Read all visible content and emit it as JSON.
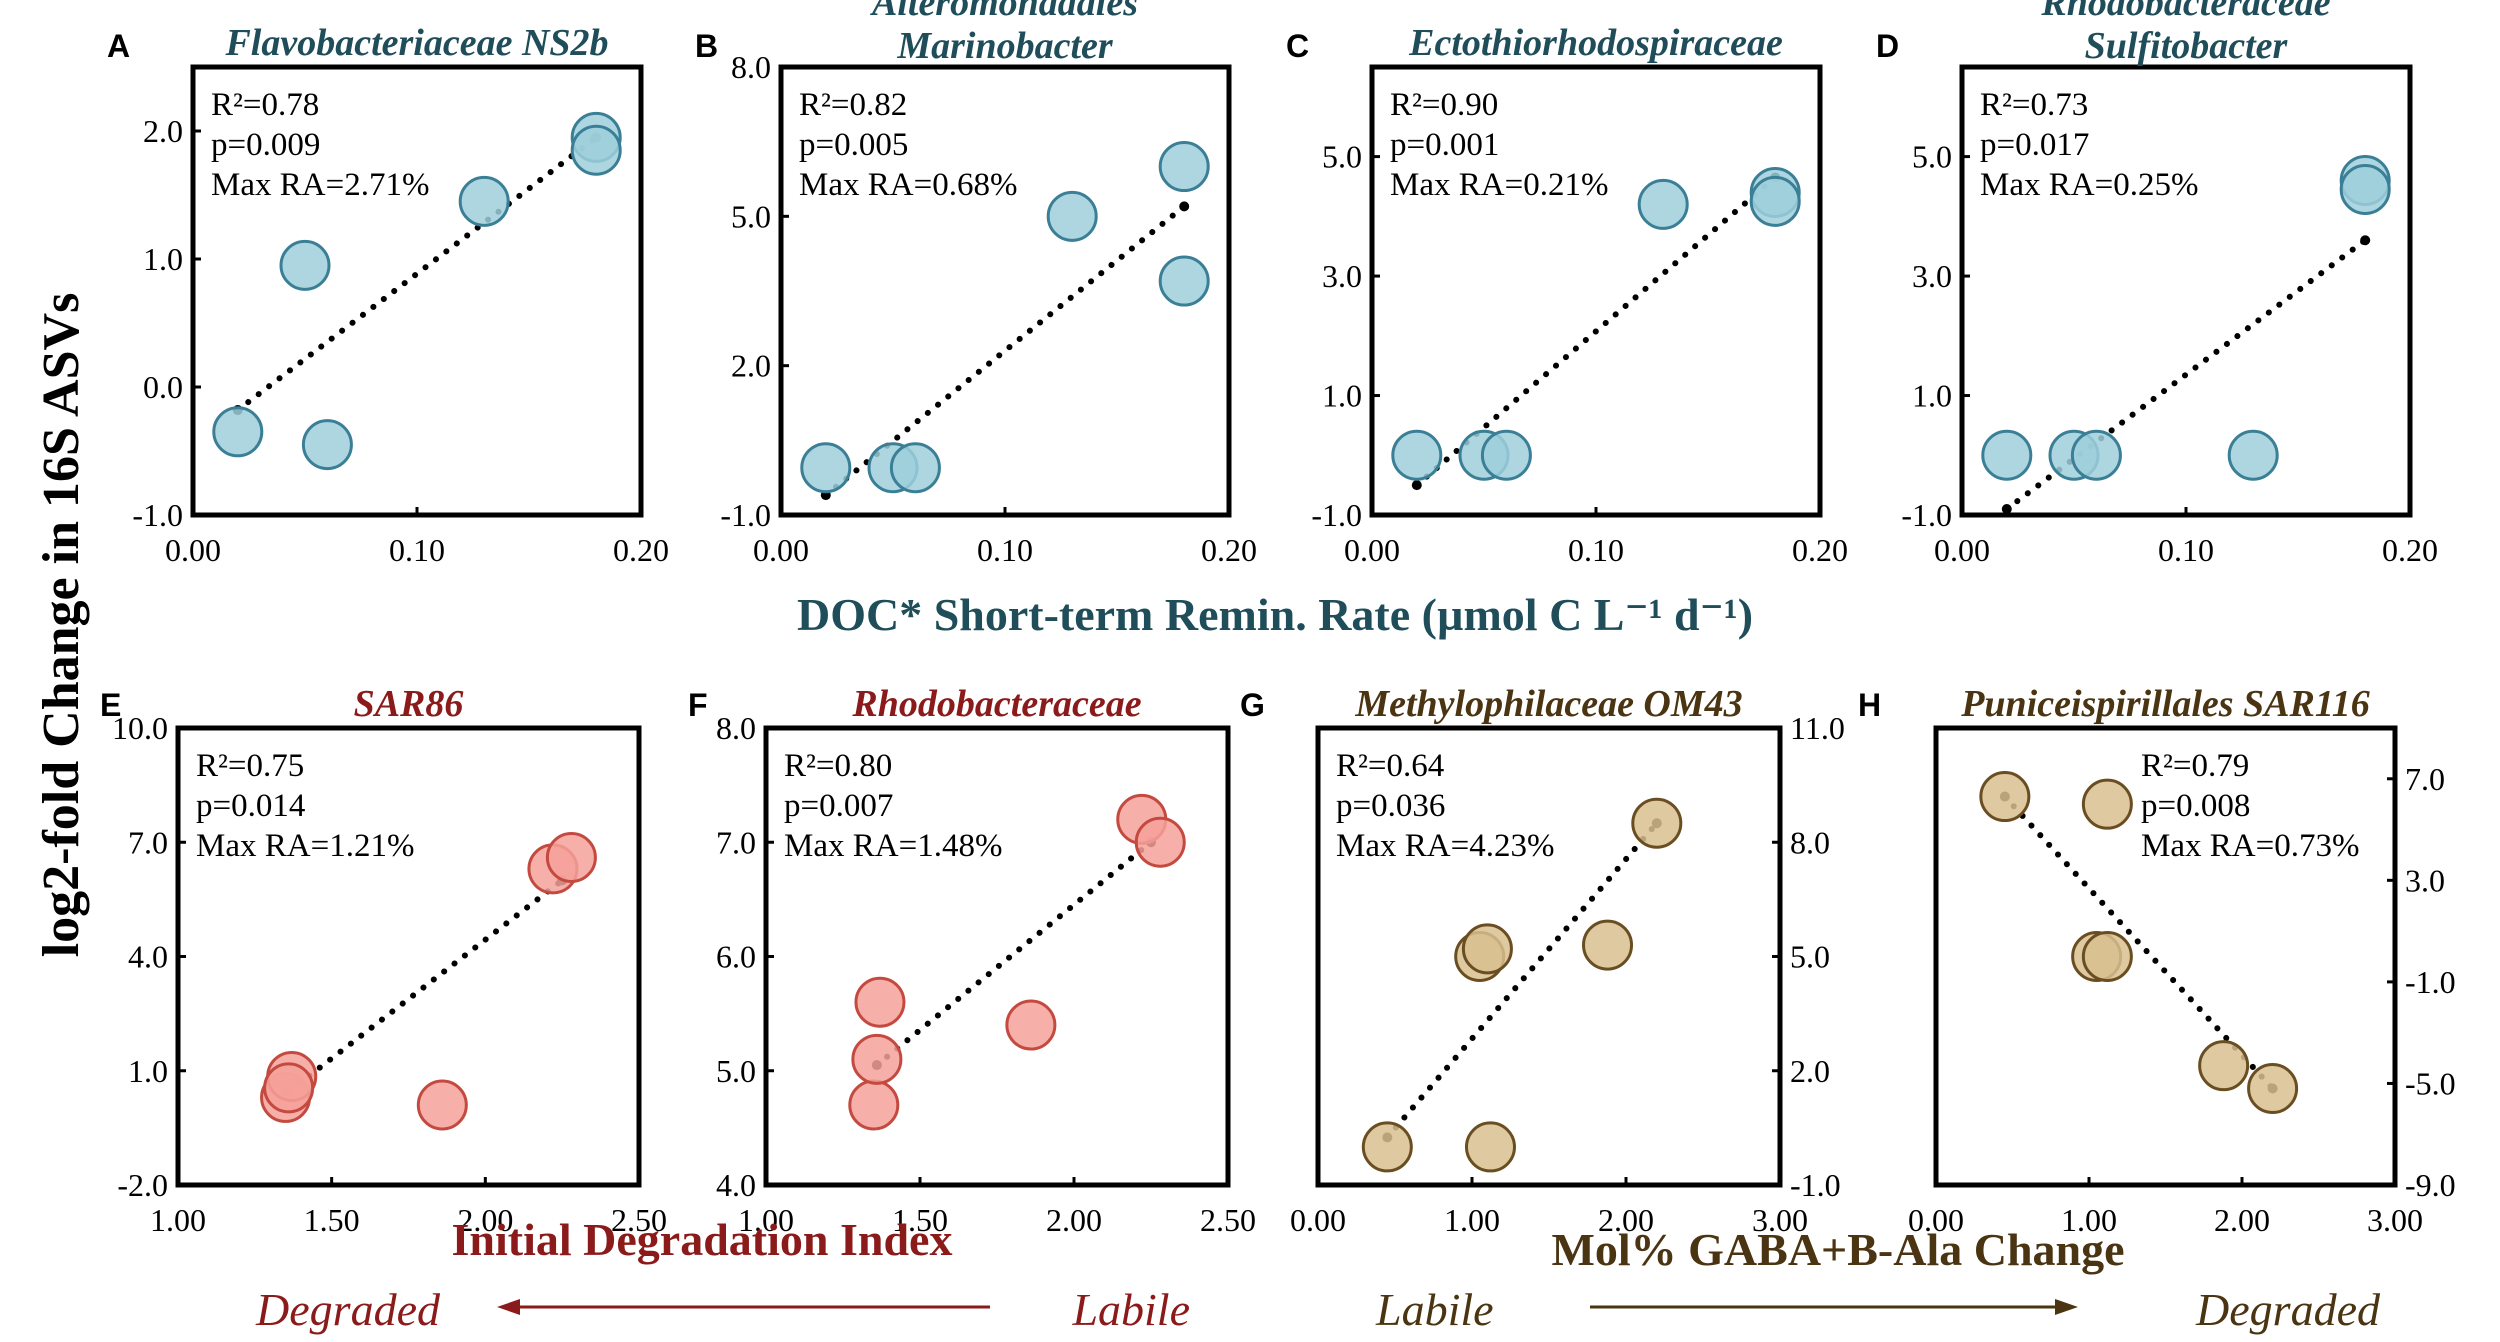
{
  "figure": {
    "ylabel": "log2-fold Change in 16S ASVs",
    "xlabel_top": "DOC* Short-term Remin. Rate (µmol C L⁻¹ d⁻¹)",
    "xlabel_bottom_left": "Initial Degradation Index",
    "xlabel_bottom_right": "Mol% GABA+B-Ala Change",
    "arrow_left": {
      "from": "Labile",
      "to": "Degraded"
    },
    "arrow_right": {
      "from": "Labile",
      "to": "Degraded"
    },
    "colors": {
      "blue_title": "#1f4e5a",
      "blue_fill": "#9fcfdc",
      "blue_stroke": "#3a7f96",
      "red_title": "#8b1a1a",
      "red_fill": "#f4a19a",
      "red_stroke": "#c44a40",
      "brown_title": "#4a3411",
      "brown_fill": "#d8bf8f",
      "brown_stroke": "#6a4e22"
    }
  },
  "chart_data": [
    {
      "panel": "A",
      "type": "scatter",
      "title": [
        "Flavobacteriaceae NS2b"
      ],
      "scheme": "blue",
      "stats": [
        "R²=0.78",
        "p=0.009",
        "Max RA=2.71%"
      ],
      "xlim": [
        0,
        0.2
      ],
      "ylim": [
        -1,
        2.5
      ],
      "xticks": [
        0,
        0.1,
        0.2
      ],
      "xtick_labels": [
        "0.00",
        "0.10",
        "0.20"
      ],
      "yticks": [
        -1,
        0,
        1,
        2
      ],
      "ytick_labels": [
        "-1.0",
        "0.0",
        "1.0",
        "2.0"
      ],
      "yaxis_side": "left",
      "points": [
        [
          0.02,
          -0.35
        ],
        [
          0.05,
          0.95
        ],
        [
          0.06,
          -0.45
        ],
        [
          0.13,
          1.45
        ],
        [
          0.18,
          1.95
        ],
        [
          0.18,
          1.85
        ]
      ],
      "trend": [
        [
          0.02,
          -0.18
        ],
        [
          0.18,
          1.95
        ]
      ]
    },
    {
      "panel": "B",
      "type": "scatter",
      "title": [
        "Alteromonadales",
        "Marinobacter"
      ],
      "scheme": "blue",
      "stats": [
        "R²=0.82",
        "p=0.005",
        "Max RA=0.68%"
      ],
      "xlim": [
        0,
        0.2
      ],
      "ylim": [
        -1,
        8
      ],
      "xticks": [
        0,
        0.1,
        0.2
      ],
      "xtick_labels": [
        "0.00",
        "0.10",
        "0.20"
      ],
      "yticks": [
        -1,
        2,
        5,
        8
      ],
      "ytick_labels": [
        "-1.0",
        "2.0",
        "5.0",
        "8.0"
      ],
      "yaxis_side": "left",
      "points": [
        [
          0.02,
          -0.05
        ],
        [
          0.05,
          -0.05
        ],
        [
          0.06,
          -0.05
        ],
        [
          0.13,
          5.0
        ],
        [
          0.18,
          6.0
        ],
        [
          0.18,
          3.7
        ]
      ],
      "trend": [
        [
          0.02,
          -0.6
        ],
        [
          0.18,
          5.2
        ]
      ]
    },
    {
      "panel": "C",
      "type": "scatter",
      "title": [
        "Ectothiorhodospiraceae"
      ],
      "scheme": "blue",
      "stats": [
        "R²=0.90",
        "p=0.001",
        "Max RA=0.21%"
      ],
      "xlim": [
        0,
        0.2
      ],
      "ylim": [
        -1,
        6.5
      ],
      "xticks": [
        0,
        0.1,
        0.2
      ],
      "xtick_labels": [
        "0.00",
        "0.10",
        "0.20"
      ],
      "yticks": [
        -1,
        1,
        3,
        5
      ],
      "ytick_labels": [
        "-1.0",
        "1.0",
        "3.0",
        "5.0"
      ],
      "yaxis_side": "left",
      "points": [
        [
          0.02,
          0.0
        ],
        [
          0.05,
          0.0
        ],
        [
          0.06,
          0.0
        ],
        [
          0.13,
          4.2
        ],
        [
          0.18,
          4.4
        ],
        [
          0.18,
          4.25
        ]
      ],
      "trend": [
        [
          0.02,
          -0.5
        ],
        [
          0.18,
          4.65
        ]
      ]
    },
    {
      "panel": "D",
      "type": "scatter",
      "title": [
        "Rhodobacteraceae",
        "Sulfitobacter"
      ],
      "scheme": "blue",
      "stats": [
        "R²=0.73",
        "p=0.017",
        "Max RA=0.25%"
      ],
      "xlim": [
        0,
        0.2
      ],
      "ylim": [
        -1,
        6.5
      ],
      "xticks": [
        0,
        0.1,
        0.2
      ],
      "xtick_labels": [
        "0.00",
        "0.10",
        "0.20"
      ],
      "yticks": [
        -1,
        1,
        3,
        5
      ],
      "ytick_labels": [
        "-1.0",
        "1.0",
        "3.0",
        "5.0"
      ],
      "yaxis_side": "left",
      "points": [
        [
          0.02,
          0.0
        ],
        [
          0.05,
          0.0
        ],
        [
          0.06,
          0.0
        ],
        [
          0.13,
          0.0
        ],
        [
          0.18,
          4.6
        ],
        [
          0.18,
          4.45
        ]
      ],
      "trend": [
        [
          0.02,
          -0.9
        ],
        [
          0.18,
          3.6
        ]
      ]
    },
    {
      "panel": "E",
      "type": "scatter",
      "title": [
        "SAR86"
      ],
      "scheme": "red",
      "stats": [
        "R²=0.75",
        "p=0.014",
        "Max RA=1.21%"
      ],
      "xlim": [
        1,
        2.5
      ],
      "ylim": [
        -2,
        10
      ],
      "xticks": [
        1,
        1.5,
        2,
        2.5
      ],
      "xtick_labels": [
        "1.00",
        "1.50",
        "2.00",
        "2.50"
      ],
      "yticks": [
        -2,
        1,
        4,
        7,
        10
      ],
      "ytick_labels": [
        "-2.0",
        "1.0",
        "4.0",
        "7.0",
        "10.0"
      ],
      "yaxis_side": "left",
      "points": [
        [
          1.35,
          0.3
        ],
        [
          1.37,
          0.85
        ],
        [
          1.36,
          0.55
        ],
        [
          1.86,
          0.1
        ],
        [
          2.22,
          6.3
        ],
        [
          2.28,
          6.6
        ]
      ],
      "trend": [
        [
          1.36,
          0.45
        ],
        [
          2.25,
          6.0
        ]
      ]
    },
    {
      "panel": "F",
      "type": "scatter",
      "title": [
        "Rhodobacteraceae"
      ],
      "scheme": "red",
      "stats": [
        "R²=0.80",
        "p=0.007",
        "Max RA=1.48%"
      ],
      "xlim": [
        1,
        2.5
      ],
      "ylim": [
        4,
        8
      ],
      "xticks": [
        1,
        1.5,
        2,
        2.5
      ],
      "xtick_labels": [
        "1.00",
        "1.50",
        "2.00",
        "2.50"
      ],
      "yticks": [
        4,
        5,
        6,
        7,
        8
      ],
      "ytick_labels": [
        "4.0",
        "5.0",
        "6.0",
        "7.0",
        "8.0"
      ],
      "yaxis_side": "left",
      "points": [
        [
          1.35,
          4.7
        ],
        [
          1.36,
          5.1
        ],
        [
          1.37,
          5.6
        ],
        [
          1.86,
          5.4
        ],
        [
          2.22,
          7.2
        ],
        [
          2.28,
          7.0
        ]
      ],
      "trend": [
        [
          1.36,
          5.05
        ],
        [
          2.25,
          7.0
        ]
      ]
    },
    {
      "panel": "G",
      "type": "scatter",
      "title": [
        "Methylophilaceae OM43"
      ],
      "scheme": "brown",
      "stats": [
        "R²=0.64",
        "p=0.036",
        "Max RA=4.23%"
      ],
      "xlim": [
        0,
        3
      ],
      "ylim": [
        -1,
        11
      ],
      "xticks": [
        0,
        1,
        2,
        3
      ],
      "xtick_labels": [
        "0.00",
        "1.00",
        "2.00",
        "3.00"
      ],
      "yticks": [
        -1,
        2,
        5,
        8,
        11
      ],
      "ytick_labels": [
        "-1.0",
        "2.0",
        "5.0",
        "8.0",
        "11.0"
      ],
      "yaxis_side": "right",
      "points": [
        [
          0.45,
          0.0
        ],
        [
          1.05,
          5.0
        ],
        [
          1.1,
          5.2
        ],
        [
          1.12,
          0.0
        ],
        [
          1.88,
          5.3
        ],
        [
          2.2,
          8.5
        ]
      ],
      "trend": [
        [
          0.45,
          0.25
        ],
        [
          2.2,
          8.5
        ]
      ]
    },
    {
      "panel": "H",
      "type": "scatter",
      "title": [
        "Puniceispirillales SAR116"
      ],
      "scheme": "brown",
      "stats": [
        "R²=0.79",
        "p=0.008",
        "Max RA=0.73%"
      ],
      "xlim": [
        0,
        3
      ],
      "ylim": [
        -9,
        9
      ],
      "xticks": [
        0,
        1,
        2,
        3
      ],
      "xtick_labels": [
        "0.00",
        "1.00",
        "2.00",
        "3.00"
      ],
      "yticks": [
        -9,
        -5,
        -1,
        3,
        7
      ],
      "ytick_labels": [
        "-9.0",
        "-5.0",
        "-1.0",
        "3.0",
        "7.0"
      ],
      "yaxis_side": "right",
      "points": [
        [
          0.45,
          6.3
        ],
        [
          1.12,
          6.0
        ],
        [
          1.05,
          0.0
        ],
        [
          1.12,
          0.0
        ],
        [
          1.88,
          -4.3
        ],
        [
          2.2,
          -5.2
        ]
      ],
      "trend": [
        [
          0.45,
          6.3
        ],
        [
          2.2,
          -5.2
        ]
      ]
    }
  ]
}
